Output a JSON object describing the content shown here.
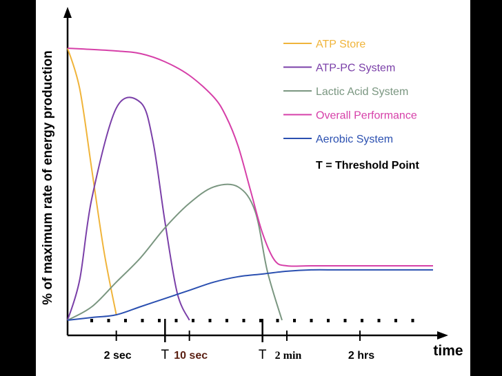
{
  "chart_data": {
    "type": "line",
    "ylabel": "% of maximum rate of energy production",
    "xlabel": "time",
    "x_tick_labels": [
      {
        "label": "2 sec",
        "x": 2
      },
      {
        "label": "T",
        "x": 4
      },
      {
        "label": "10 sec",
        "x": 5
      },
      {
        "label": "T",
        "x": 8
      },
      {
        "label": "2 min",
        "x": 9
      },
      {
        "label": "2 hrs",
        "x": 12
      }
    ],
    "xlim": [
      0,
      15
    ],
    "ylim": [
      0,
      100
    ],
    "series": [
      {
        "name": "ATP Store",
        "color": "#f0b43a",
        "x": [
          0,
          0.5,
          1,
          1.5,
          2.0
        ],
        "y": [
          100,
          85,
          55,
          25,
          2
        ]
      },
      {
        "name": "ATP-PC System",
        "color": "#7a3fa8",
        "x": [
          0,
          0.5,
          1,
          2,
          3,
          3.5,
          4,
          4.5,
          5
        ],
        "y": [
          0,
          15,
          45,
          78,
          80,
          66,
          36,
          10,
          0
        ]
      },
      {
        "name": "Lactic Acid System",
        "color": "#7a9680",
        "x": [
          0,
          1,
          2,
          3,
          4,
          5,
          6,
          7,
          7.7,
          8.2,
          8.8
        ],
        "y": [
          0,
          5,
          14,
          23,
          34,
          43,
          49,
          49,
          40,
          18,
          0
        ]
      },
      {
        "name": "Overall Performance",
        "color": "#d63fa8",
        "x": [
          0,
          2,
          3,
          4,
          5,
          6,
          6.5,
          7,
          7.5,
          8,
          8.5,
          9,
          10,
          12,
          15
        ],
        "y": [
          100,
          99,
          98,
          95,
          90,
          82,
          75,
          64,
          48,
          32,
          22,
          20,
          20,
          20,
          20
        ]
      },
      {
        "name": "Aerobic System",
        "color": "#2a4fb0",
        "x": [
          0,
          1,
          2,
          3,
          4,
          5,
          6,
          7,
          8,
          9,
          10,
          11,
          12,
          15
        ],
        "y": [
          0,
          1,
          2,
          5,
          8,
          11,
          14,
          16,
          17,
          18,
          18.5,
          18.5,
          18.5,
          18.5
        ]
      }
    ],
    "legend_position": "top-right",
    "legend_extra": "T = Threshold Point",
    "grid": false
  }
}
